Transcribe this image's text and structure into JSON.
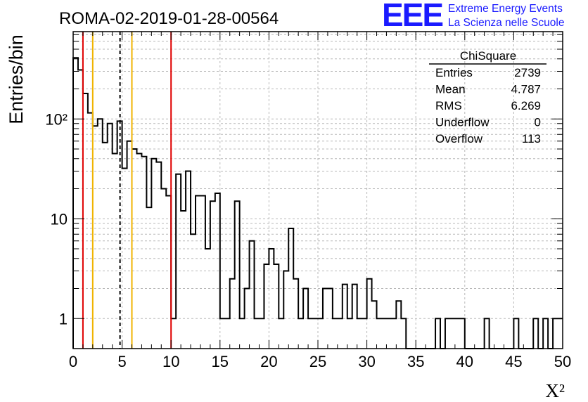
{
  "title": "ROMA-02-2019-01-28-00564",
  "logo": {
    "text": "EEE",
    "line1": "Extreme Energy Events",
    "line2": "La Scienza nelle Scuole",
    "color": "#1a1aff"
  },
  "stats_box": {
    "title": "ChiSquare",
    "rows": [
      {
        "label": "Entries",
        "value": "2739"
      },
      {
        "label": "Mean",
        "value": "4.787"
      },
      {
        "label": "RMS",
        "value": "6.269"
      },
      {
        "label": "Underflow",
        "value": "0"
      },
      {
        "label": "Overflow",
        "value": "113"
      }
    ]
  },
  "chart_data": {
    "type": "histogram",
    "title": "ROMA-02-2019-01-28-00564",
    "xlabel": "X²",
    "ylabel": "Entries/bin",
    "xlim": [
      0,
      50
    ],
    "ylim": [
      0.5,
      750
    ],
    "yscale": "log",
    "grid": true,
    "bin_width": 0.5,
    "x_ticks": [
      "0",
      "5",
      "10",
      "15",
      "20",
      "25",
      "30",
      "35",
      "40",
      "45",
      "50"
    ],
    "y_ticks": [
      {
        "value": 1,
        "label": "1"
      },
      {
        "value": 10,
        "label": "10"
      },
      {
        "value": 100,
        "label": "10²"
      }
    ],
    "bin_contents": [
      410,
      310,
      180,
      115,
      85,
      100,
      58,
      90,
      45,
      95,
      32,
      60,
      50,
      45,
      42,
      13,
      40,
      37,
      20,
      17,
      1,
      28,
      12,
      30,
      7,
      17,
      17,
      5,
      15,
      18,
      1,
      1,
      2.5,
      15,
      1,
      2,
      6,
      1,
      1,
      3.5,
      5,
      3.5,
      1,
      3,
      8,
      2.5,
      1,
      2,
      1,
      1,
      1,
      2,
      2,
      1,
      1,
      2.2,
      1,
      2.2,
      1,
      1,
      2.5,
      1.5,
      1,
      1,
      1,
      1,
      1.5,
      1,
      0.5,
      0.5,
      0.5,
      0.5,
      0.5,
      0.5,
      1,
      0.5,
      1,
      1,
      1,
      1,
      0.5,
      0.5,
      0.5,
      0.5,
      1,
      0.5,
      0.5,
      0.5,
      0.5,
      0.5,
      1,
      0.5,
      0.5,
      0.5,
      1,
      0.5,
      1,
      0.5,
      1,
      1
    ],
    "vertical_lines": [
      {
        "x": 1,
        "color": "#e00000",
        "style": "solid"
      },
      {
        "x": 2,
        "color": "#f0b400",
        "style": "solid"
      },
      {
        "x": 4.787,
        "color": "#000000",
        "style": "dashed"
      },
      {
        "x": 6,
        "color": "#f0b400",
        "style": "solid"
      },
      {
        "x": 10,
        "color": "#e00000",
        "style": "solid"
      }
    ],
    "colors": {
      "histogram": "#000000",
      "grid": "#b8b8b8"
    }
  }
}
